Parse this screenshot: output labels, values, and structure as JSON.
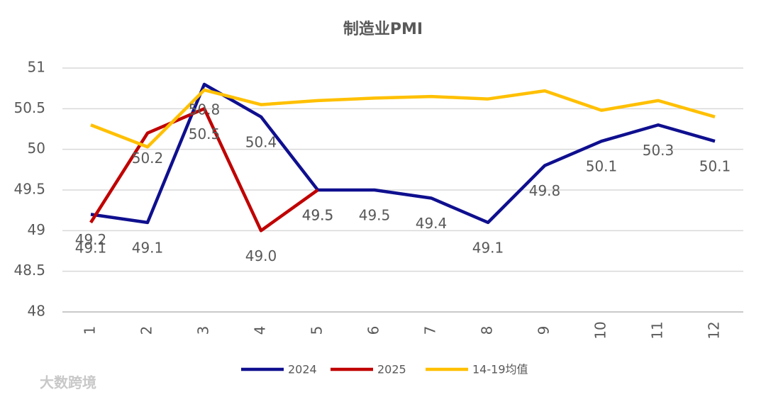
{
  "chart_data": {
    "type": "line",
    "title": "制造业PMI",
    "categories": [
      "1",
      "2",
      "3",
      "4",
      "5",
      "6",
      "7",
      "8",
      "9",
      "10",
      "11",
      "12"
    ],
    "series": [
      {
        "name": "2024",
        "color": "#0f0f8f",
        "values": [
          49.2,
          49.1,
          50.8,
          50.4,
          49.5,
          49.5,
          49.4,
          49.1,
          49.8,
          50.1,
          50.3,
          50.1
        ],
        "value_labels": [
          "49.2",
          "49.1",
          "50.8",
          "50.4",
          "49.5",
          "49.5",
          "49.4",
          "49.1",
          "49.8",
          "50.1",
          "50.3",
          "50.1"
        ]
      },
      {
        "name": "2025",
        "color": "#c00000",
        "values": [
          49.1,
          50.2,
          50.5,
          49.0,
          49.5,
          null,
          null,
          null,
          null,
          null,
          null,
          null
        ],
        "value_labels": [
          "49.1",
          "50.2",
          "50.5",
          "49.0",
          "49.5",
          null,
          null,
          null,
          null,
          null,
          null,
          null
        ]
      },
      {
        "name": "14-19均值",
        "color": "#ffc000",
        "values": [
          50.3,
          50.03,
          50.73,
          50.55,
          50.6,
          50.63,
          50.65,
          50.62,
          50.72,
          50.48,
          50.6,
          50.4
        ]
      }
    ],
    "ylim": [
      48,
      51
    ],
    "yticks": [
      48,
      48.5,
      49,
      49.5,
      50,
      50.5,
      51
    ],
    "grid": true,
    "legend": "bottom",
    "watermark": "大数跨境"
  }
}
